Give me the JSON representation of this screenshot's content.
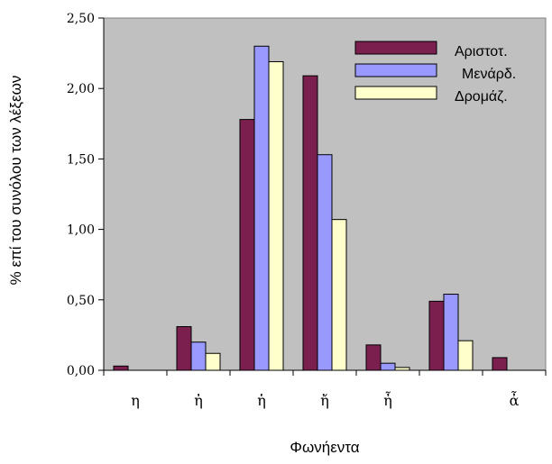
{
  "chart_data": {
    "type": "bar",
    "categories": [
      "η",
      "ἠ",
      "ἡ",
      "ἤ",
      "ἦ",
      "",
      "ἆ"
    ],
    "series": [
      {
        "name": "Αριστοτ.",
        "color": "#7b1f4e",
        "values": [
          0.03,
          0.31,
          1.78,
          2.09,
          0.18,
          0.49,
          0.09
        ]
      },
      {
        "name": "Μενάρδ.",
        "color": "#9999ff",
        "values": [
          0.0,
          0.2,
          2.3,
          1.53,
          0.05,
          0.54,
          0.0
        ]
      },
      {
        "name": "Δρομάζ.",
        "color": "#ffffcc",
        "values": [
          0.0,
          0.12,
          2.19,
          1.07,
          0.02,
          0.21,
          0.0
        ]
      }
    ],
    "xlabel": "Φωνήεντα",
    "ylabel": "% επί του συνόλου των λέξεων",
    "ylim": [
      0,
      2.5
    ],
    "yticks": [
      0,
      0.5,
      1.0,
      1.5,
      2.0,
      2.5
    ],
    "ytick_labels": [
      "0,00",
      "0,50",
      "1,00",
      "1,50",
      "2,00",
      "2,50"
    ],
    "grid": false,
    "plot_background": "#c0c0c0",
    "legend_position": "top-right"
  }
}
